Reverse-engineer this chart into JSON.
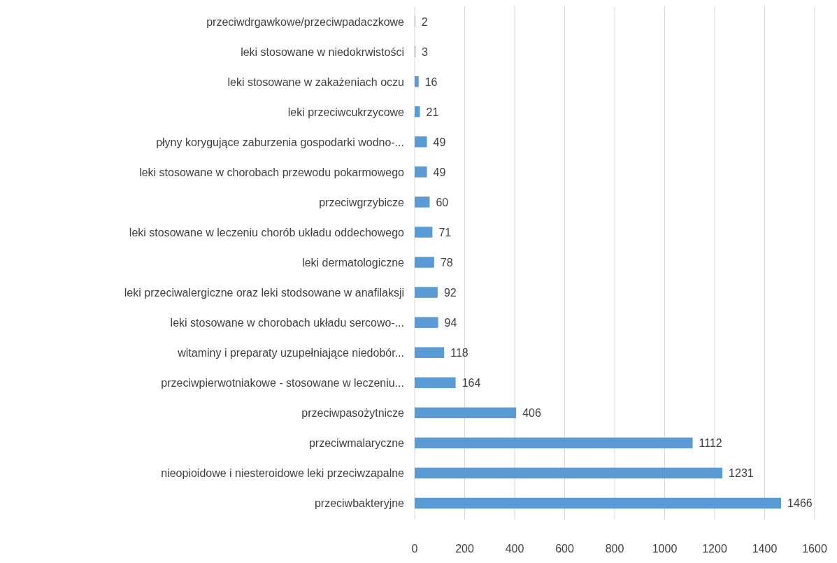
{
  "chart_data": {
    "type": "bar",
    "orientation": "horizontal",
    "categories": [
      "przeciwdrgawkowe/przeciwpadaczkowe",
      "leki stosowane w niedokrwistości",
      "leki stosowane w zakażeniach oczu",
      "leki przeciwcukrzycowe",
      "płyny korygujące zaburzenia gospodarki wodno-...",
      "leki stosowane w chorobach przewodu pokarmowego",
      "przeciwgrzybicze",
      "leki stosowane w leczeniu chorób układu oddechowego",
      "leki dermatologiczne",
      "leki przeciwalergiczne oraz leki stodsowane w anafilaksji",
      "leki stosowane w chorobach układu sercowo-...",
      "witaminy i preparaty uzupełniające niedobór...",
      "przeciwpierwotniakowe - stosowane w leczeniu...",
      "przeciwpasożytnicze",
      "przeciwmalaryczne",
      "nieopioidowe i niesteroidowe leki przeciwzapalne",
      "przeciwbakteryjne"
    ],
    "values": [
      2,
      3,
      16,
      21,
      49,
      49,
      60,
      71,
      78,
      92,
      94,
      118,
      164,
      406,
      1112,
      1231,
      1466
    ],
    "color": "#5b9bd5",
    "xlim": [
      0,
      1600
    ],
    "xticks": [
      0,
      200,
      400,
      600,
      800,
      1000,
      1200,
      1400,
      1600
    ],
    "grid": "x",
    "data_labels": true
  }
}
